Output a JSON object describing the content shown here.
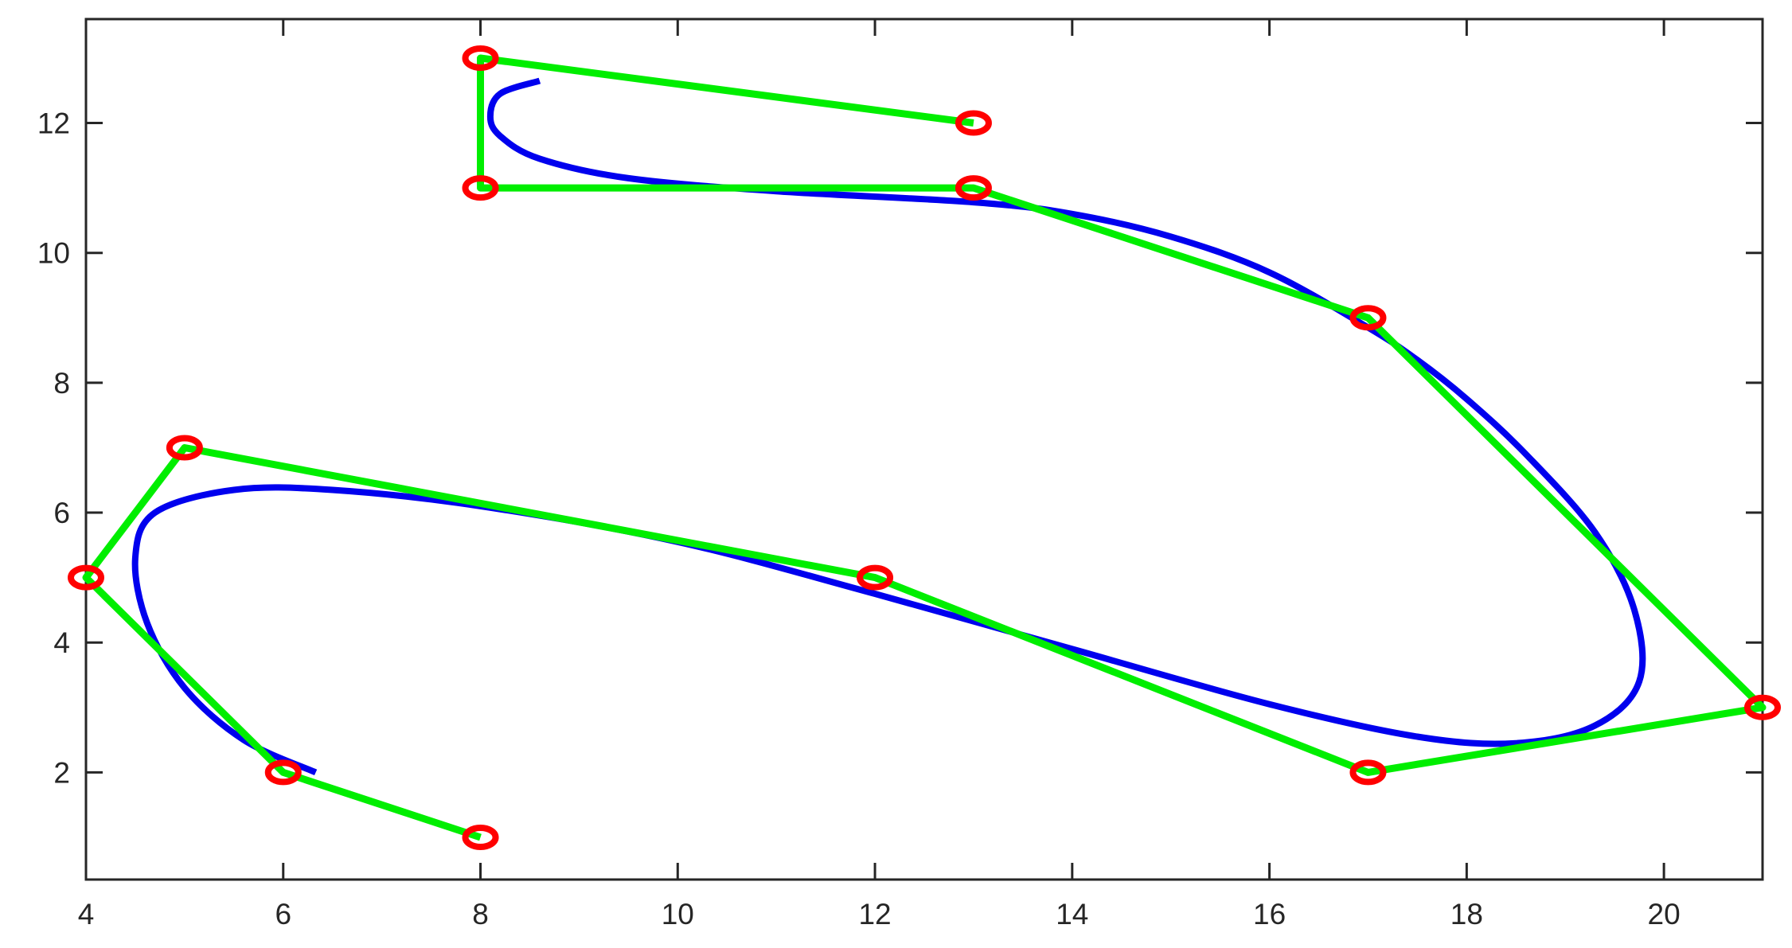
{
  "chart_data": {
    "type": "line",
    "title": "",
    "xlabel": "",
    "ylabel": "",
    "xlim": [
      4,
      21
    ],
    "ylim": [
      0.35,
      13.6
    ],
    "x_ticks": [
      4,
      6,
      8,
      10,
      12,
      14,
      16,
      18,
      20
    ],
    "y_ticks": [
      2,
      4,
      6,
      8,
      10,
      12
    ],
    "grid": false,
    "legend": "none",
    "series": [
      {
        "kind": "control_polygon",
        "color": "#00ee00",
        "marker": "circle",
        "marker_color": "#ff0000",
        "x": [
          8,
          6,
          4,
          5,
          12,
          17,
          21,
          17,
          13,
          8,
          8,
          13
        ],
        "y": [
          1,
          2,
          5,
          7,
          5,
          2,
          3,
          9,
          11,
          11,
          13,
          12
        ]
      },
      {
        "kind": "spline_curve",
        "color": "#0000ee",
        "x": [
          6.33,
          5.6,
          5.0,
          4.62,
          4.5,
          4.7,
          5.5,
          6.5,
          8.0,
          10.0,
          12.0,
          14.0,
          16.0,
          17.5,
          18.5,
          19.3,
          19.75,
          19.7,
          19.3,
          18.6,
          18.0,
          17.5,
          17.0,
          16.0,
          15.0,
          14.0,
          13.0,
          11.0,
          9.5,
          8.6,
          8.2,
          8.1,
          8.2,
          8.6
        ],
        "y": [
          2.0,
          2.5,
          3.3,
          4.3,
          5.3,
          6.0,
          6.35,
          6.35,
          6.1,
          5.55,
          4.75,
          3.9,
          3.05,
          2.55,
          2.45,
          2.72,
          3.4,
          4.5,
          5.7,
          6.9,
          7.75,
          8.35,
          8.85,
          9.7,
          10.25,
          10.6,
          10.78,
          10.95,
          11.15,
          11.45,
          11.8,
          12.1,
          12.45,
          12.65
        ]
      }
    ]
  }
}
